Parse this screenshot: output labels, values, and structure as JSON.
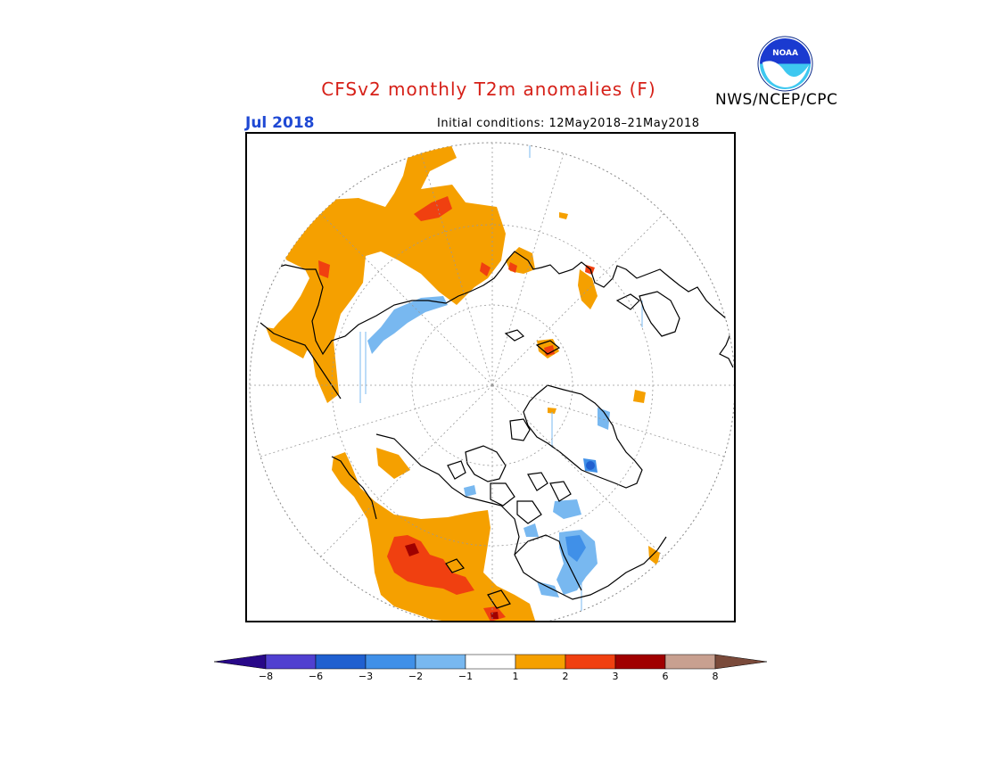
{
  "header": {
    "title": "CFSv2 monthly T2m anomalies (F)",
    "month": "Jul 2018",
    "initial_conditions": "Initial conditions: 12May2018–21May2018",
    "agency": "NWS/NCEP/CPC",
    "logo_text": "NOAA"
  },
  "legend": {
    "colors": [
      "#280888",
      "#5040d0",
      "#2060d0",
      "#4090e8",
      "#78b8f0",
      "#ffffff",
      "#f5a000",
      "#f04010",
      "#a00000",
      "#c8a090",
      "#7a4a3a"
    ],
    "ticks": [
      "−8",
      "−6",
      "−3",
      "−2",
      "−1",
      "1",
      "2",
      "3",
      "6",
      "8"
    ]
  },
  "map": {
    "projection": "north-polar-stereographic",
    "gridlines": "dotted",
    "colors": {
      "warm_1_2": "#f5a000",
      "warm_2_3": "#f04010",
      "warm_3_6": "#a00000",
      "cool_1_2": "#78b8f0",
      "cool_2_3": "#4090e8",
      "cool_3_6": "#2060d0",
      "coast": "#000000"
    }
  }
}
